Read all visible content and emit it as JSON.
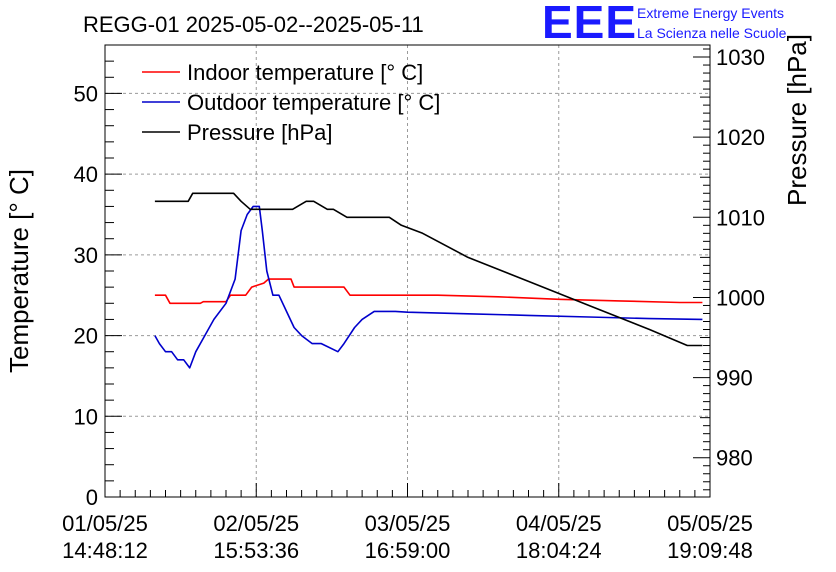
{
  "chart_data": {
    "type": "line",
    "title": "REGG-01 2025-05-02--2025-05-11",
    "ylabel": "Temperature [° C]",
    "y2label": "Pressure [hPa]",
    "ylim": [
      0,
      56
    ],
    "y2lim": [
      975.1,
      1031.5
    ],
    "y_ticks": [
      0,
      10,
      20,
      30,
      40,
      50
    ],
    "y2_ticks": [
      980,
      990,
      1000,
      1010,
      1020,
      1030
    ],
    "x_ticks": [
      {
        "pos": 0,
        "line1": "01/05/25",
        "line2": "14:48:12"
      },
      {
        "pos": 1,
        "line1": "02/05/25",
        "line2": "15:53:36"
      },
      {
        "pos": 2,
        "line1": "03/05/25",
        "line2": "16:59:00"
      },
      {
        "pos": 3,
        "line1": "04/05/25",
        "line2": "18:04:24"
      },
      {
        "pos": 4,
        "line1": "05/05/25",
        "line2": "19:09:48"
      }
    ],
    "xlim": [
      0,
      4
    ],
    "legend_position": "top-left",
    "series": [
      {
        "name": "Indoor temperature [° C]",
        "axis": "left",
        "color": "#ff0000",
        "x": [
          0.33,
          0.4,
          0.43,
          0.63,
          0.65,
          0.8,
          0.83,
          0.93,
          0.97,
          1.05,
          1.08,
          1.23,
          1.25,
          1.31,
          1.33,
          1.58,
          1.62,
          2.2,
          2.6,
          3.0,
          3.4,
          3.8,
          3.95
        ],
        "values": [
          25,
          25,
          24,
          24,
          24.2,
          24.2,
          25,
          25,
          26,
          26.5,
          27,
          27,
          26,
          26,
          26,
          26,
          25,
          25,
          24.8,
          24.5,
          24.3,
          24.1,
          24.1
        ]
      },
      {
        "name": "Outdoor temperature [° C]",
        "axis": "left",
        "color": "#0000cc",
        "x": [
          0.33,
          0.36,
          0.4,
          0.44,
          0.48,
          0.52,
          0.56,
          0.6,
          0.66,
          0.72,
          0.8,
          0.86,
          0.9,
          0.94,
          0.98,
          1.02,
          1.04,
          1.07,
          1.11,
          1.15,
          1.2,
          1.25,
          1.3,
          1.37,
          1.43,
          1.54,
          1.58,
          1.65,
          1.7,
          1.78,
          1.85,
          1.92,
          2.0,
          2.4,
          2.8,
          3.2,
          3.6,
          3.95
        ],
        "values": [
          20,
          19,
          18,
          18,
          17,
          17,
          16,
          18,
          20,
          22,
          24,
          27,
          33,
          35,
          36,
          36,
          33,
          28,
          25,
          25,
          23,
          21,
          20,
          19,
          19,
          18,
          19,
          21,
          22,
          23,
          23,
          23,
          22.9,
          22.7,
          22.5,
          22.3,
          22.1,
          22
        ]
      },
      {
        "name": "Pressure [hPa]",
        "axis": "right",
        "color": "#000000",
        "x": [
          0.33,
          0.55,
          0.58,
          0.63,
          0.85,
          0.9,
          0.96,
          1.2,
          1.24,
          1.33,
          1.38,
          1.47,
          1.51,
          1.6,
          1.65,
          1.71,
          1.78,
          1.88,
          1.96,
          2.1,
          2.4,
          2.8,
          3.2,
          3.6,
          3.85,
          3.95
        ],
        "values": [
          1012,
          1012,
          1013,
          1013,
          1013,
          1012,
          1011,
          1011,
          1011,
          1012,
          1012,
          1011,
          1011,
          1010,
          1010,
          1010,
          1010,
          1010,
          1009,
          1008,
          1005,
          1002,
          999,
          996,
          994,
          994
        ]
      }
    ]
  },
  "logo": {
    "mark": "EEE",
    "line1": "Extreme Energy Events",
    "line2": "La Scienza nelle Scuole"
  }
}
